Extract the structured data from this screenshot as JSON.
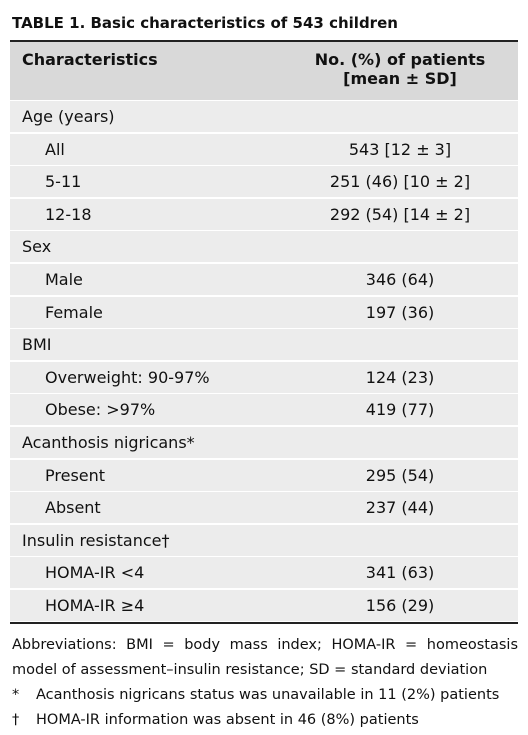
{
  "title": "TABLE 1. Basic characteristics of 543 children",
  "header": {
    "characteristic": "Characteristics",
    "value": [
      "No. (%) of patients",
      "[mean ± SD]"
    ]
  },
  "sections": [
    {
      "label": "Age (years)",
      "rows": [
        [
          "All",
          "543 [12 ± 3]"
        ],
        [
          "5-11",
          "251 (46) [10 ± 2]"
        ],
        [
          "12-18",
          "292 (54) [14 ± 2]"
        ]
      ]
    },
    {
      "label": "Sex",
      "rows": [
        [
          "Male",
          "346 (64)"
        ],
        [
          "Female",
          "197 (36)"
        ]
      ]
    },
    {
      "label": "BMI",
      "rows": [
        [
          "Overweight: 90-97%",
          "124 (23)"
        ],
        [
          "Obese: >97%",
          "419 (77)"
        ]
      ]
    },
    {
      "label": "Acanthosis nigricans*",
      "rows": [
        [
          "Present",
          "295 (54)"
        ],
        [
          "Absent",
          "237 (44)"
        ]
      ]
    },
    {
      "label": "Insulin resistance†",
      "rows": [
        [
          "HOMA-IR <4",
          "341 (63)"
        ],
        [
          "HOMA-IR ≥4",
          "156 (29)"
        ]
      ]
    }
  ],
  "footnotes": [
    {
      "text": "Abbreviations: BMI = body mass index; HOMA-IR = homeostasis model of assessment–insulin resistance; SD = standard deviation"
    },
    {
      "symbol": "*",
      "text": "Acanthosis nigricans status was unavailable in 11 (2%) patients"
    },
    {
      "symbol": "†",
      "text": "HOMA-IR information was absent in 46 (8%) patients"
    }
  ]
}
